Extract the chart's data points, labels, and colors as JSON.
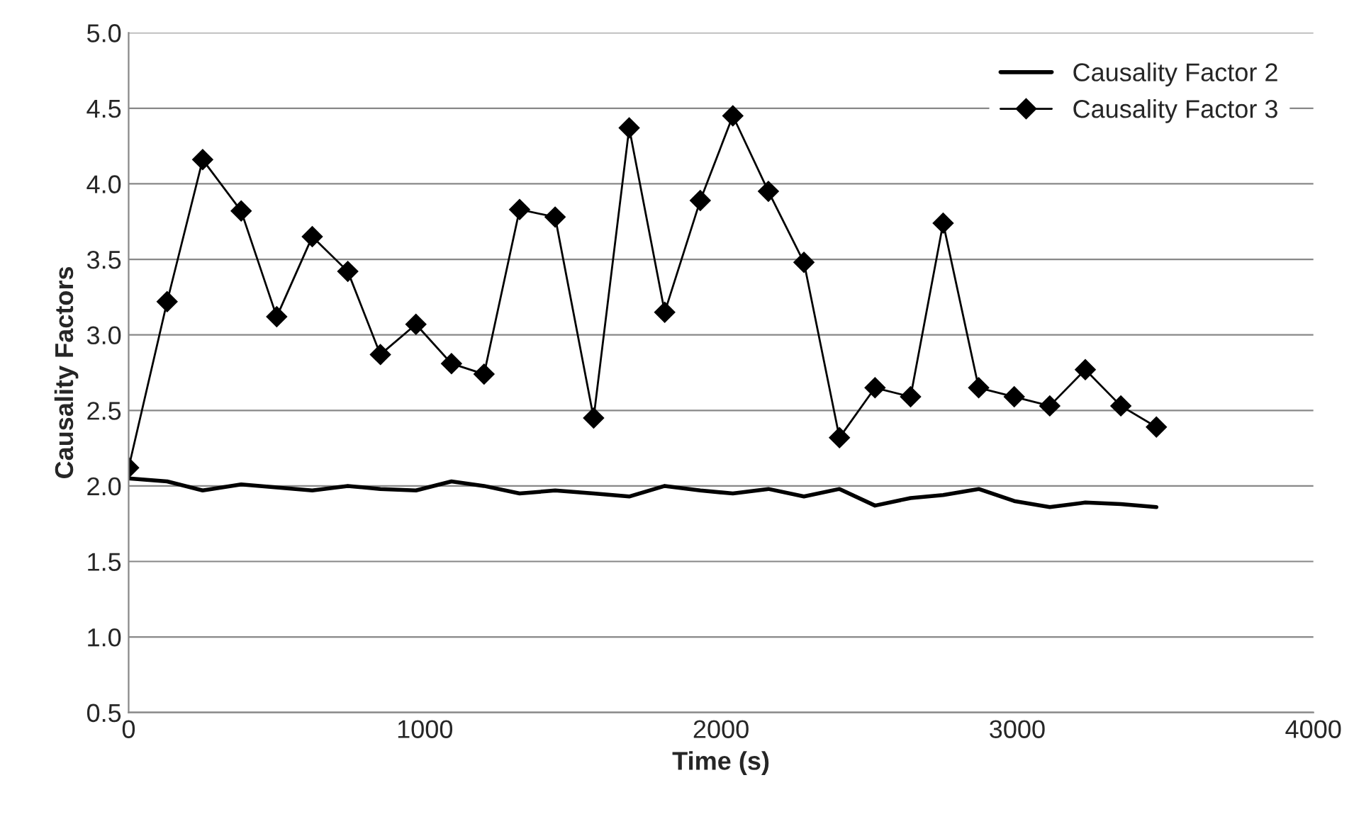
{
  "chart_data": {
    "type": "line",
    "xlabel": "Time (s)",
    "ylabel": "Causality Factors",
    "x": [
      0,
      130,
      250,
      380,
      500,
      620,
      740,
      850,
      970,
      1090,
      1200,
      1320,
      1440,
      1570,
      1690,
      1810,
      1930,
      2040,
      2160,
      2280,
      2400,
      2520,
      2640,
      2750,
      2870,
      2990,
      3110,
      3230,
      3350,
      3470
    ],
    "series": [
      {
        "name": "Causality Factor 2",
        "color": "#000000",
        "marker": "none",
        "values": [
          2.05,
          2.03,
          1.97,
          2.01,
          1.99,
          1.97,
          2.0,
          1.98,
          1.97,
          2.03,
          2.0,
          1.95,
          1.97,
          1.95,
          1.93,
          2.0,
          1.97,
          1.95,
          1.98,
          1.93,
          1.98,
          1.87,
          1.92,
          1.94,
          1.98,
          1.9,
          1.86,
          1.89,
          1.88,
          1.86
        ]
      },
      {
        "name": "Causality Factor 3",
        "color": "#000000",
        "marker": "diamond",
        "values": [
          2.12,
          3.22,
          4.16,
          3.82,
          3.12,
          3.65,
          3.42,
          2.87,
          3.07,
          2.81,
          2.74,
          3.83,
          3.78,
          2.45,
          4.37,
          3.15,
          3.89,
          4.45,
          3.95,
          3.48,
          2.32,
          2.65,
          2.59,
          3.74,
          2.65,
          2.59,
          2.53,
          2.77,
          2.53,
          2.39
        ]
      }
    ],
    "xlim": [
      0,
      4000
    ],
    "xticks": [
      0,
      1000,
      2000,
      3000,
      4000
    ],
    "ylim": [
      0.5,
      5.0
    ],
    "yticks": [
      {
        "value": 0.5,
        "label": "0.5"
      },
      {
        "value": 1.0,
        "label": "1.0"
      },
      {
        "value": 1.5,
        "label": "1.5"
      },
      {
        "value": 2.0,
        "label": "2.0"
      },
      {
        "value": 2.5,
        "label": "2.5"
      },
      {
        "value": 3.0,
        "label": "3.0"
      },
      {
        "value": 3.5,
        "label": "3.5"
      },
      {
        "value": 4.0,
        "label": "4.0"
      },
      {
        "value": 4.5,
        "label": "4.5"
      },
      {
        "value": 5.0,
        "label": "5.0"
      }
    ],
    "grid": "y",
    "legend": "top right",
    "line_style": "solid"
  }
}
